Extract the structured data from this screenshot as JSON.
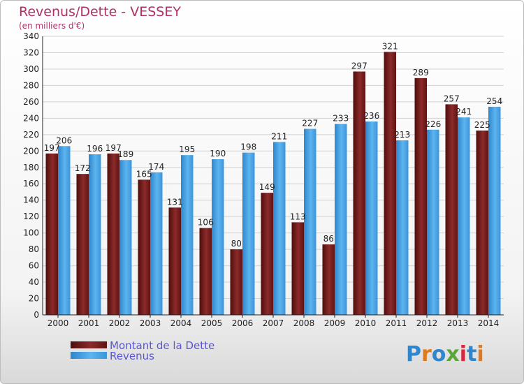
{
  "chart_data": {
    "type": "bar",
    "title": "Revenus/Dette - VESSEY",
    "subtitle": "(en milliers d'€)",
    "categories": [
      "2000",
      "2001",
      "2002",
      "2003",
      "2004",
      "2005",
      "2006",
      "2007",
      "2008",
      "2009",
      "2010",
      "2011",
      "2012",
      "2013",
      "2014"
    ],
    "series": [
      {
        "name": "Montant de la Dette",
        "color": "#7a1e1e",
        "values": [
          197,
          172,
          197,
          165,
          131,
          106,
          80,
          149,
          113,
          86,
          297,
          321,
          289,
          257,
          225
        ]
      },
      {
        "name": "Revenus",
        "color": "#3a9ee0",
        "values": [
          206,
          196,
          189,
          174,
          195,
          190,
          198,
          211,
          227,
          233,
          236,
          213,
          226,
          241,
          254
        ]
      }
    ],
    "ylim": [
      0,
      340
    ],
    "yticks": [
      0,
      20,
      40,
      60,
      80,
      100,
      120,
      140,
      160,
      180,
      200,
      220,
      240,
      260,
      280,
      300,
      320,
      340
    ],
    "grid": true,
    "legend_position": "bottom-left",
    "logo": "Proxiti"
  }
}
